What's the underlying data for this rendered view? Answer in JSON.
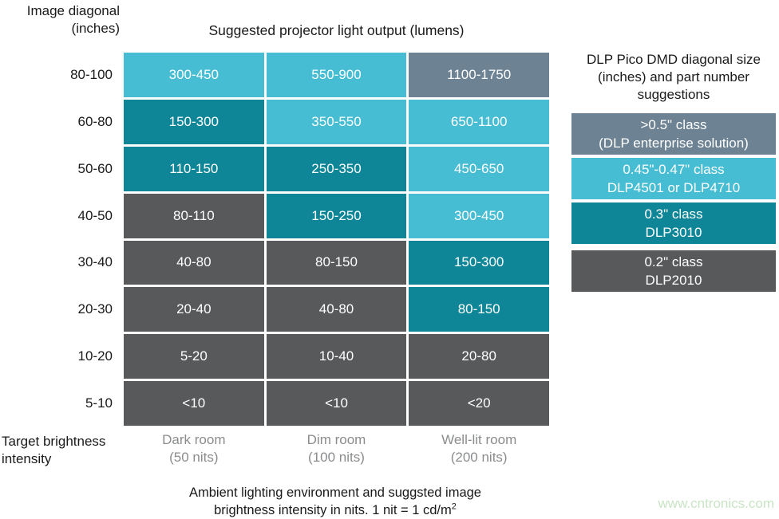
{
  "labels": {
    "row_axis_line1": "Image diagonal",
    "row_axis_line2": "(inches)",
    "col_axis_line1": "Target brightness",
    "col_axis_line2": "intensity",
    "caption_line1": "Ambient lighting environment and suggsted image",
    "caption_line2": "brightness intensity in nits. 1 nit = 1 cd/m",
    "caption_sup": "2",
    "watermark": "www.cntronics.com"
  },
  "colors": {
    "cyan": "#46bdd3",
    "teal": "#0f8698",
    "gray": "#58595b",
    "slate": "#6d8394",
    "footer_text": "#8a8c8e",
    "watermark": "#c9e4c5"
  },
  "chart_data": {
    "type": "heatmap",
    "title": "Suggested projector light output (lumens)",
    "row_axis": "Image diagonal (inches)",
    "col_axis": "Target brightness intensity",
    "rows": [
      "80-100",
      "60-80",
      "50-60",
      "40-50",
      "30-40",
      "20-30",
      "10-20",
      "5-10"
    ],
    "columns": [
      {
        "label": "Dark room",
        "sublabel": "(50 nits)"
      },
      {
        "label": "Dim room",
        "sublabel": "(100 nits)"
      },
      {
        "label": "Well-lit room",
        "sublabel": "(200 nits)"
      }
    ],
    "cells": [
      [
        {
          "value": "300-450",
          "color": "cyan"
        },
        {
          "value": "550-900",
          "color": "cyan"
        },
        {
          "value": "1100-1750",
          "color": "slate"
        }
      ],
      [
        {
          "value": "150-300",
          "color": "teal"
        },
        {
          "value": "350-550",
          "color": "cyan"
        },
        {
          "value": "650-1100",
          "color": "cyan"
        }
      ],
      [
        {
          "value": "110-150",
          "color": "teal"
        },
        {
          "value": "250-350",
          "color": "teal"
        },
        {
          "value": "450-650",
          "color": "cyan"
        }
      ],
      [
        {
          "value": "80-110",
          "color": "gray"
        },
        {
          "value": "150-250",
          "color": "teal"
        },
        {
          "value": "300-450",
          "color": "cyan"
        }
      ],
      [
        {
          "value": "40-80",
          "color": "gray"
        },
        {
          "value": "80-150",
          "color": "gray"
        },
        {
          "value": "150-300",
          "color": "teal"
        }
      ],
      [
        {
          "value": "20-40",
          "color": "gray"
        },
        {
          "value": "40-80",
          "color": "gray"
        },
        {
          "value": "80-150",
          "color": "teal"
        }
      ],
      [
        {
          "value": "5-20",
          "color": "gray"
        },
        {
          "value": "10-40",
          "color": "gray"
        },
        {
          "value": "20-80",
          "color": "gray"
        }
      ],
      [
        {
          "value": "<10",
          "color": "gray"
        },
        {
          "value": "<10",
          "color": "gray"
        },
        {
          "value": "<20",
          "color": "gray"
        }
      ]
    ],
    "legend": {
      "title": "DLP Pico DMD diagonal size (inches) and part number suggestions",
      "position": "right",
      "items": [
        {
          "line1": ">0.5\" class",
          "line2": "(DLP enterprise solution)",
          "color": "slate"
        },
        {
          "line1": "0.45\"-0.47\" class",
          "line2": "DLP4501 or DLP4710",
          "color": "cyan"
        },
        {
          "line1": "0.3\" class",
          "line2": "DLP3010",
          "color": "teal"
        },
        {
          "line1": "0.2\" class",
          "line2": "DLP2010",
          "color": "gray"
        }
      ]
    }
  }
}
